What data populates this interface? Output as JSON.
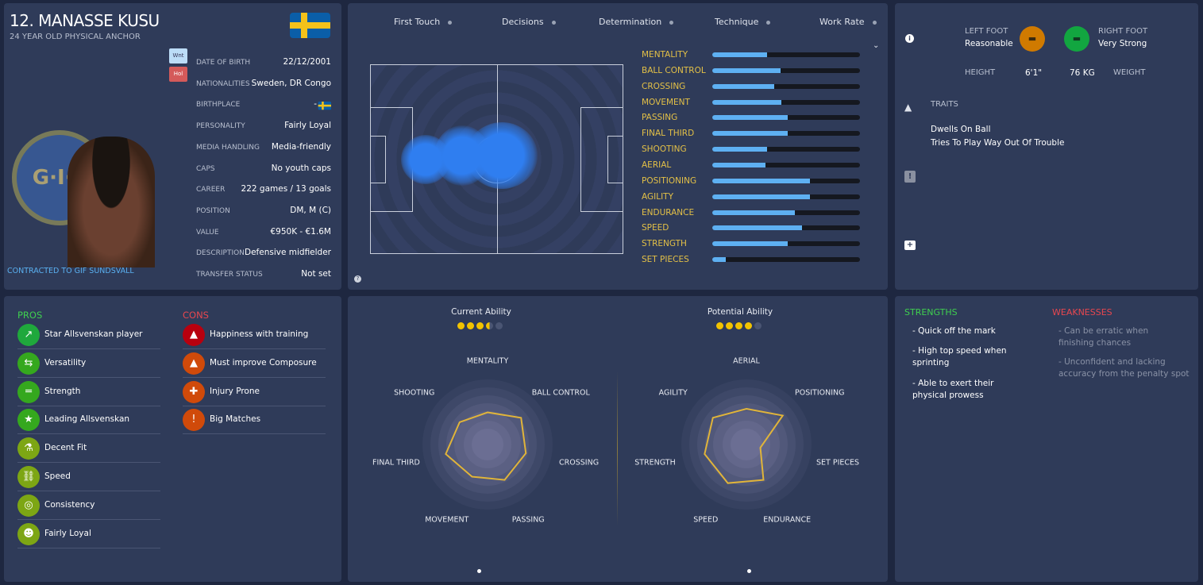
{
  "player": {
    "name": "12. MANASSE KUSU",
    "subtitle": "24 YEAR OLD PHYSICAL ANCHOR",
    "contract": "CONTRACTED TO GIF SUNDSVALL",
    "club_badge_text": "G·I·F",
    "tags": [
      "Wnt",
      "Hol"
    ],
    "info": [
      {
        "label": "DATE OF BIRTH",
        "value": "22/12/2001"
      },
      {
        "label": "NATIONALITIES",
        "value": "Sweden, DR Congo"
      },
      {
        "label": "BIRTHPLACE",
        "value": "-"
      },
      {
        "label": "PERSONALITY",
        "value": "Fairly Loyal"
      },
      {
        "label": "MEDIA HANDLING",
        "value": "Media-friendly"
      },
      {
        "label": "CAPS",
        "value": "No youth caps"
      },
      {
        "label": "CAREER",
        "value": "222  games /   13  goals"
      },
      {
        "label": "POSITION",
        "value": "DM, M (C)"
      },
      {
        "label": "VALUE",
        "value": "€950K - €1.6M"
      },
      {
        "label": "DESCRIPTION",
        "value": "Defensive midfielder"
      },
      {
        "label": "TRANSFER STATUS",
        "value": "Not set"
      }
    ]
  },
  "key_attributes": [
    "First Touch",
    "Decisions",
    "Determination",
    "Technique",
    "Work Rate"
  ],
  "attributes": [
    {
      "name": "MENTALITY",
      "value": 0.37
    },
    {
      "name": "BALL CONTROL",
      "value": 0.46
    },
    {
      "name": "CROSSING",
      "value": 0.42
    },
    {
      "name": "MOVEMENT",
      "value": 0.47
    },
    {
      "name": "PASSING",
      "value": 0.51
    },
    {
      "name": "FINAL THIRD",
      "value": 0.51
    },
    {
      "name": "SHOOTING",
      "value": 0.37
    },
    {
      "name": "AERIAL",
      "value": 0.36
    },
    {
      "name": "POSITIONING",
      "value": 0.66
    },
    {
      "name": "AGILITY",
      "value": 0.66
    },
    {
      "name": "ENDURANCE",
      "value": 0.56
    },
    {
      "name": "SPEED",
      "value": 0.61
    },
    {
      "name": "STRENGTH",
      "value": 0.51
    },
    {
      "name": "SET PIECES",
      "value": 0.09
    }
  ],
  "physical": {
    "left_foot_label": "LEFT FOOT",
    "left_foot": "Reasonable",
    "right_foot_label": "RIGHT FOOT",
    "right_foot": "Very Strong",
    "height_label": "HEIGHT",
    "height": "6'1\"",
    "weight": "76 KG",
    "weight_label": "WEIGHT",
    "left_foot_color": "#d07a00",
    "right_foot_color": "#12a640"
  },
  "traits": {
    "title": "TRAITS",
    "items": [
      "Dwells On Ball",
      "Tries To Play Way Out Of Trouble"
    ]
  },
  "pros": {
    "title": "PROS",
    "items": [
      {
        "label": "Star Allsvenskan player",
        "icon": "trend-up-icon",
        "color": "#1fa83c"
      },
      {
        "label": "Versatility",
        "icon": "arrows-icon",
        "color": "#35a81e"
      },
      {
        "label": "Strength",
        "icon": "dumbbell-icon",
        "color": "#35a81e"
      },
      {
        "label": "Leading Allsvenskan",
        "icon": "star-icon",
        "color": "#35a81e"
      },
      {
        "label": "Decent Fit",
        "icon": "flask-icon",
        "color": "#7da614"
      },
      {
        "label": "Speed",
        "icon": "chain-icon",
        "color": "#7da614"
      },
      {
        "label": "Consistency",
        "icon": "target-icon",
        "color": "#7da614"
      },
      {
        "label": "Fairly Loyal",
        "icon": "head-icon",
        "color": "#7da614"
      }
    ]
  },
  "cons": {
    "title": "CONS",
    "items": [
      {
        "label": "Happiness with training",
        "icon": "cone-sad-icon",
        "color": "#b8000f"
      },
      {
        "label": "Must improve Composure",
        "icon": "cone-target-icon",
        "color": "#d04a0a"
      },
      {
        "label": "Injury Prone",
        "icon": "cross-icon",
        "color": "#d04a0a"
      },
      {
        "label": "Big Matches",
        "icon": "ball-alert-icon",
        "color": "#d04a0a"
      }
    ]
  },
  "chart_data": [
    {
      "type": "radar",
      "title": "Current Ability",
      "stars": 3.5,
      "max_stars": 5,
      "axes": [
        "MENTALITY",
        "BALL CONTROL",
        "CROSSING",
        "PASSING",
        "MOVEMENT",
        "FINAL THIRD",
        "SHOOTING"
      ],
      "values": [
        0.45,
        0.6,
        0.55,
        0.55,
        0.5,
        0.6,
        0.5
      ],
      "range": [
        0,
        1
      ]
    },
    {
      "type": "radar",
      "title": "Potential Ability",
      "stars": 4,
      "max_stars": 5,
      "axes": [
        "AERIAL",
        "POSITIONING",
        "SET PIECES",
        "ENDURANCE",
        "SPEED",
        "STRENGTH",
        "AGILITY"
      ],
      "values": [
        0.5,
        0.65,
        0.2,
        0.55,
        0.6,
        0.6,
        0.6
      ],
      "range": [
        0,
        1
      ]
    }
  ],
  "strengths": {
    "title": "STRENGTHS",
    "items": [
      "- Quick off the mark",
      "- High top speed when sprinting",
      "- Able to exert their physical prowess"
    ]
  },
  "weaknesses": {
    "title": "WEAKNESSES",
    "items": [
      "- Can be erratic when finishing chances",
      "- Unconfident and lacking accuracy from the penalty spot"
    ]
  }
}
